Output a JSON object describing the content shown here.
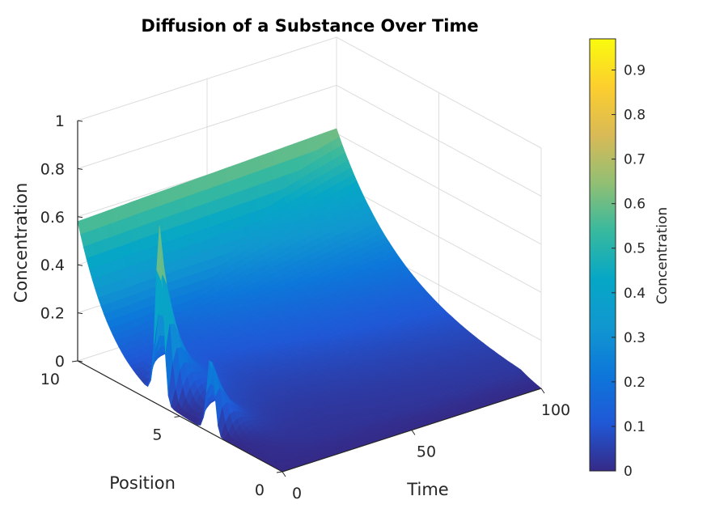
{
  "chart_data": {
    "type": "surface",
    "title": "Diffusion of a Substance Over Time",
    "xlabel": "Time",
    "ylabel": "Position",
    "zlabel": "Concentration",
    "xlim": [
      0,
      100
    ],
    "ylim": [
      0,
      10
    ],
    "zlim": [
      0,
      1
    ],
    "x_ticks": [
      0,
      50,
      100
    ],
    "y_ticks": [
      0,
      5,
      10
    ],
    "z_ticks": [
      0,
      0.2,
      0.4,
      0.6,
      0.8,
      1
    ],
    "z_tick_labels": [
      "0",
      "0.2",
      "0.4",
      "0.6",
      "0.8",
      "1"
    ],
    "grid": true,
    "colormap": "parula",
    "colorbar": {
      "label": "Concentration",
      "limits": [
        0,
        0.97
      ],
      "ticks": [
        0,
        0.1,
        0.2,
        0.3,
        0.4,
        0.5,
        0.6,
        0.7,
        0.8,
        0.9
      ]
    },
    "peaks": [
      {
        "time": 0,
        "position": 6.0,
        "concentration": 0.72
      },
      {
        "time": 0,
        "position": 3.5,
        "concentration": 0.32
      }
    ],
    "edge_time100_position10_concentration": 0.62,
    "edge_time0_position10_concentration": 0.58
  },
  "colors": {
    "parula": [
      "#352a87",
      "#2058d6",
      "#0d77da",
      "#1197d0",
      "#06a7c6",
      "#38b99e",
      "#92bf73",
      "#d9ba56",
      "#fcce2e",
      "#f9fb0e"
    ]
  }
}
